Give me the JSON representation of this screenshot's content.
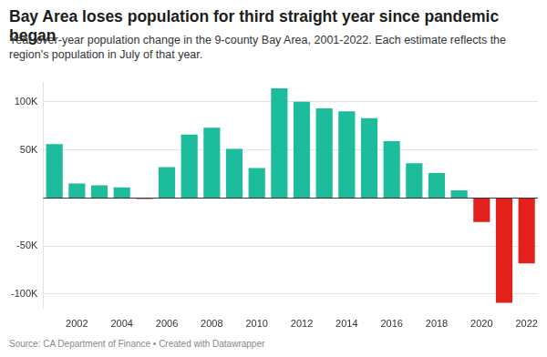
{
  "chart_data": {
    "type": "bar",
    "title": "Bay Area loses population for third straight year since pandemic began",
    "subtitle": "Year-over-year population change in the 9-county Bay Area, 2001-2022. Each estimate reflects the region's population in July of that year.",
    "source": "Source: CA Department of Finance • Created with Datawrapper",
    "categories": [
      null,
      "2002",
      null,
      "2004",
      null,
      "2006",
      null,
      "2008",
      null,
      "2010",
      null,
      "2012",
      null,
      "2014",
      null,
      "2016",
      null,
      "2018",
      null,
      "2020",
      null,
      "2022"
    ],
    "values": [
      56000,
      15000,
      13000,
      11000,
      -1000,
      32000,
      66000,
      73000,
      51000,
      31000,
      114000,
      100000,
      93000,
      90000,
      83000,
      59000,
      36000,
      26000,
      8000,
      -25000,
      -109000,
      -68000
    ],
    "colors": [
      "#1cbc9c",
      "#1cbc9c",
      "#1cbc9c",
      "#1cbc9c",
      "#c0392b",
      "#1cbc9c",
      "#1cbc9c",
      "#1cbc9c",
      "#1cbc9c",
      "#1cbc9c",
      "#1cbc9c",
      "#1cbc9c",
      "#1cbc9c",
      "#1cbc9c",
      "#1cbc9c",
      "#1cbc9c",
      "#1cbc9c",
      "#1cbc9c",
      "#1cbc9c",
      "#e3201b",
      "#e3201b",
      "#e3201b"
    ],
    "ylim": [
      -115000,
      120000
    ],
    "yticks": [
      {
        "value": -100000,
        "label": "-100K"
      },
      {
        "value": -50000,
        "label": "-50K"
      },
      {
        "value": 50000,
        "label": "50K"
      },
      {
        "value": 100000,
        "label": "100K"
      }
    ],
    "grid": true,
    "data_labels": false
  }
}
